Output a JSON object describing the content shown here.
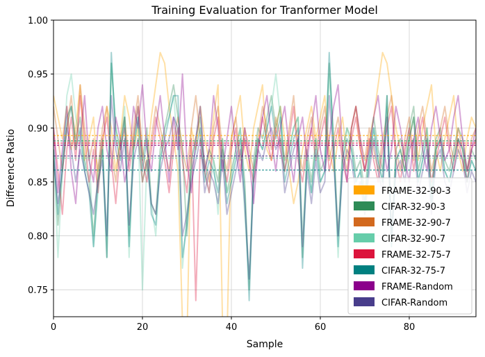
{
  "chart_data": {
    "type": "line",
    "title": "Training Evaluation for Tranformer Model",
    "xlabel": "Sample",
    "ylabel": "Difference Ratio",
    "xlim": [
      0,
      95
    ],
    "ylim": [
      0.725,
      1.0
    ],
    "xticks": [
      "0",
      "20",
      "40",
      "60",
      "80"
    ],
    "xtick_values": [
      0,
      20,
      40,
      60,
      80
    ],
    "yticks": [
      "0.75",
      "0.80",
      "0.85",
      "0.90",
      "0.95",
      "1.00"
    ],
    "ytick_values": [
      0.75,
      0.8,
      0.85,
      0.9,
      0.95,
      1.0
    ],
    "grid": true,
    "legend_position": "bottom-right",
    "series": [
      {
        "name": "FRAME-32-90-3",
        "color": "#FFA500",
        "mean": 0.893,
        "values": [
          0.93,
          0.91,
          0.89,
          0.92,
          0.88,
          0.9,
          0.94,
          0.87,
          0.89,
          0.91,
          0.85,
          0.88,
          0.92,
          0.9,
          0.86,
          0.89,
          0.93,
          0.91,
          0.88,
          0.9,
          0.85,
          0.87,
          0.91,
          0.94,
          0.97,
          0.96,
          0.92,
          0.89,
          0.86,
          0.72,
          0.7,
          0.9,
          0.88,
          0.92,
          0.89,
          0.87,
          0.91,
          0.94,
          0.72,
          0.7,
          0.89,
          0.91,
          0.93,
          0.88,
          0.86,
          0.9,
          0.92,
          0.94,
          0.88,
          0.87,
          0.9,
          0.92,
          0.89,
          0.86,
          0.83,
          0.85,
          0.88,
          0.9,
          0.92,
          0.89,
          0.91,
          0.93,
          0.88,
          0.86,
          0.89,
          0.91,
          0.87,
          0.9,
          0.92,
          0.88,
          0.86,
          0.89,
          0.91,
          0.94,
          0.97,
          0.96,
          0.93,
          0.9,
          0.88,
          0.86,
          0.89,
          0.91,
          0.87,
          0.9,
          0.92,
          0.94,
          0.88,
          0.86,
          0.89,
          0.91,
          0.93,
          0.88,
          0.86,
          0.89,
          0.91,
          0.9
        ]
      },
      {
        "name": "CIFAR-32-90-3",
        "color": "#2E8B57",
        "mean": 0.888,
        "values": [
          0.88,
          0.81,
          0.86,
          0.9,
          0.92,
          0.89,
          0.91,
          0.87,
          0.85,
          0.8,
          0.86,
          0.89,
          0.78,
          0.96,
          0.9,
          0.88,
          0.91,
          0.8,
          0.89,
          0.92,
          0.87,
          0.9,
          0.83,
          0.82,
          0.88,
          0.9,
          0.92,
          0.94,
          0.91,
          0.88,
          0.8,
          0.87,
          0.89,
          0.91,
          0.86,
          0.88,
          0.87,
          0.85,
          0.89,
          0.84,
          0.86,
          0.88,
          0.9,
          0.85,
          0.75,
          0.87,
          0.9,
          0.89,
          0.91,
          0.93,
          0.9,
          0.92,
          0.86,
          0.88,
          0.9,
          0.91,
          0.78,
          0.88,
          0.85,
          0.89,
          0.86,
          0.87,
          0.96,
          0.89,
          0.8,
          0.88,
          0.9,
          0.89,
          0.86,
          0.87,
          0.84,
          0.88,
          0.91,
          0.88,
          0.86,
          0.93,
          0.8,
          0.88,
          0.89,
          0.87,
          0.9,
          0.92,
          0.86,
          0.88,
          0.9,
          0.84,
          0.89,
          0.9,
          0.87,
          0.86,
          0.88,
          0.9,
          0.89,
          0.86,
          0.88,
          0.87
        ]
      },
      {
        "name": "FRAME-32-90-7",
        "color": "#D2691E",
        "mean": 0.884,
        "values": [
          0.92,
          0.89,
          0.86,
          0.9,
          0.93,
          0.88,
          0.94,
          0.9,
          0.87,
          0.89,
          0.86,
          0.9,
          0.92,
          0.88,
          0.85,
          0.89,
          0.91,
          0.87,
          0.9,
          0.93,
          0.88,
          0.86,
          0.89,
          0.92,
          0.9,
          0.88,
          0.86,
          0.89,
          0.91,
          0.88,
          0.86,
          0.9,
          0.93,
          0.89,
          0.87,
          0.85,
          0.9,
          0.92,
          0.88,
          0.86,
          0.89,
          0.91,
          0.87,
          0.9,
          0.88,
          0.86,
          0.89,
          0.92,
          0.9,
          0.88,
          0.91,
          0.89,
          0.87,
          0.9,
          0.93,
          0.88,
          0.86,
          0.89,
          0.91,
          0.88,
          0.9,
          0.92,
          0.87,
          0.89,
          0.91,
          0.88,
          0.86,
          0.9,
          0.92,
          0.89,
          0.87,
          0.9,
          0.88,
          0.86,
          0.89,
          0.91,
          0.93,
          0.88,
          0.86,
          0.89,
          0.91,
          0.87,
          0.9,
          0.92,
          0.89,
          0.86,
          0.88,
          0.9,
          0.92,
          0.89,
          0.87,
          0.9,
          0.88,
          0.86,
          0.89,
          0.9
        ]
      },
      {
        "name": "CIFAR-32-90-7",
        "color": "#66CDAA",
        "mean": 0.872,
        "values": [
          0.88,
          0.78,
          0.86,
          0.93,
          0.95,
          0.91,
          0.89,
          0.86,
          0.88,
          0.79,
          0.84,
          0.88,
          0.8,
          0.96,
          0.9,
          0.88,
          0.92,
          0.78,
          0.88,
          0.91,
          0.75,
          0.87,
          0.83,
          0.8,
          0.87,
          0.9,
          0.91,
          0.93,
          0.88,
          0.77,
          0.82,
          0.87,
          0.89,
          0.92,
          0.86,
          0.84,
          0.87,
          0.82,
          0.89,
          0.84,
          0.85,
          0.88,
          0.9,
          0.82,
          0.76,
          0.86,
          0.89,
          0.88,
          0.9,
          0.92,
          0.95,
          0.91,
          0.87,
          0.88,
          0.9,
          0.91,
          0.8,
          0.87,
          0.84,
          0.89,
          0.85,
          0.86,
          0.95,
          0.88,
          0.78,
          0.87,
          0.9,
          0.88,
          0.85,
          0.86,
          0.83,
          0.87,
          0.9,
          0.87,
          0.85,
          0.92,
          0.79,
          0.87,
          0.88,
          0.86,
          0.89,
          0.91,
          0.85,
          0.87,
          0.9,
          0.83,
          0.88,
          0.89,
          0.86,
          0.85,
          0.87,
          0.89,
          0.88,
          0.85,
          0.87,
          0.86
        ]
      },
      {
        "name": "FRAME-32-75-7",
        "color": "#DC143C",
        "mean": 0.886,
        "values": [
          0.9,
          0.86,
          0.82,
          0.88,
          0.91,
          0.87,
          0.93,
          0.89,
          0.85,
          0.88,
          0.84,
          0.89,
          0.91,
          0.87,
          0.83,
          0.88,
          0.9,
          0.86,
          0.89,
          0.92,
          0.87,
          0.85,
          0.88,
          0.91,
          0.89,
          0.87,
          0.84,
          0.88,
          0.9,
          0.87,
          0.84,
          0.89,
          0.74,
          0.88,
          0.86,
          0.84,
          0.89,
          0.91,
          0.87,
          0.85,
          0.88,
          0.9,
          0.86,
          0.89,
          0.87,
          0.85,
          0.88,
          0.91,
          0.89,
          0.87,
          0.9,
          0.88,
          0.86,
          0.89,
          0.92,
          0.87,
          0.85,
          0.88,
          0.9,
          0.87,
          0.89,
          0.91,
          0.86,
          0.88,
          0.9,
          0.87,
          0.85,
          0.89,
          0.91,
          0.88,
          0.86,
          0.89,
          0.87,
          0.85,
          0.88,
          0.9,
          0.92,
          0.87,
          0.85,
          0.88,
          0.9,
          0.86,
          0.89,
          0.91,
          0.88,
          0.85,
          0.87,
          0.89,
          0.91,
          0.88,
          0.86,
          0.89,
          0.87,
          0.85,
          0.88,
          0.89
        ]
      },
      {
        "name": "CIFAR-32-75-7",
        "color": "#008080",
        "mean": 0.861,
        "values": [
          0.88,
          0.82,
          0.87,
          0.91,
          0.92,
          0.88,
          0.9,
          0.86,
          0.84,
          0.79,
          0.85,
          0.88,
          0.78,
          0.97,
          0.89,
          0.87,
          0.91,
          0.79,
          0.88,
          0.91,
          0.86,
          0.89,
          0.82,
          0.81,
          0.87,
          0.89,
          0.91,
          0.93,
          0.93,
          0.78,
          0.81,
          0.86,
          0.88,
          0.9,
          0.85,
          0.87,
          0.86,
          0.84,
          0.88,
          0.83,
          0.85,
          0.87,
          0.89,
          0.84,
          0.74,
          0.86,
          0.89,
          0.88,
          0.9,
          0.92,
          0.89,
          0.91,
          0.85,
          0.87,
          0.89,
          0.9,
          0.77,
          0.87,
          0.84,
          0.88,
          0.85,
          0.86,
          0.97,
          0.88,
          0.79,
          0.87,
          0.89,
          0.88,
          0.85,
          0.86,
          0.83,
          0.87,
          0.9,
          0.87,
          0.85,
          0.93,
          0.79,
          0.87,
          0.88,
          0.86,
          0.89,
          0.91,
          0.85,
          0.87,
          0.89,
          0.83,
          0.88,
          0.89,
          0.86,
          0.85,
          0.87,
          0.89,
          0.88,
          0.85,
          0.87,
          0.86
        ]
      },
      {
        "name": "FRAME-Random",
        "color": "#8B008B",
        "mean": 0.884,
        "values": [
          0.9,
          0.84,
          0.88,
          0.92,
          0.86,
          0.83,
          0.89,
          0.93,
          0.87,
          0.85,
          0.9,
          0.92,
          0.88,
          0.86,
          0.91,
          0.89,
          0.85,
          0.87,
          0.92,
          0.9,
          0.94,
          0.88,
          0.86,
          0.9,
          0.93,
          0.89,
          0.85,
          0.91,
          0.88,
          0.95,
          0.87,
          0.84,
          0.89,
          0.92,
          0.86,
          0.88,
          0.93,
          0.9,
          0.86,
          0.89,
          0.92,
          0.88,
          0.85,
          0.9,
          0.87,
          0.83,
          0.88,
          0.91,
          0.93,
          0.89,
          0.86,
          0.9,
          0.92,
          0.88,
          0.85,
          0.89,
          0.91,
          0.87,
          0.9,
          0.93,
          0.88,
          0.86,
          0.89,
          0.92,
          0.94,
          0.88,
          0.85,
          0.9,
          0.92,
          0.89,
          0.86,
          0.88,
          0.91,
          0.93,
          0.89,
          0.86,
          0.88,
          0.92,
          0.9,
          0.87,
          0.85,
          0.89,
          0.91,
          0.88,
          0.86,
          0.9,
          0.92,
          0.89,
          0.87,
          0.88,
          0.91,
          0.93,
          0.89,
          0.86,
          0.88,
          0.9
        ]
      },
      {
        "name": "CIFAR-Random",
        "color": "#483D8B",
        "mean": 0.874,
        "values": [
          0.87,
          0.83,
          0.86,
          0.9,
          0.88,
          0.85,
          0.88,
          0.86,
          0.84,
          0.82,
          0.85,
          0.87,
          0.8,
          0.93,
          0.88,
          0.86,
          0.89,
          0.81,
          0.87,
          0.89,
          0.85,
          0.87,
          0.83,
          0.82,
          0.86,
          0.88,
          0.89,
          0.91,
          0.9,
          0.8,
          0.82,
          0.85,
          0.87,
          0.89,
          0.84,
          0.86,
          0.85,
          0.83,
          0.87,
          0.82,
          0.84,
          0.86,
          0.88,
          0.83,
          0.76,
          0.85,
          0.88,
          0.87,
          0.89,
          0.9,
          0.88,
          0.89,
          0.84,
          0.86,
          0.88,
          0.89,
          0.79,
          0.86,
          0.83,
          0.87,
          0.84,
          0.85,
          0.93,
          0.87,
          0.8,
          0.86,
          0.88,
          0.87,
          0.84,
          0.85,
          0.82,
          0.86,
          0.89,
          0.86,
          0.84,
          0.91,
          0.8,
          0.86,
          0.87,
          0.85,
          0.88,
          0.89,
          0.84,
          0.86,
          0.88,
          0.82,
          0.87,
          0.88,
          0.85,
          0.84,
          0.86,
          0.88,
          0.87,
          0.84,
          0.86,
          0.85
        ]
      }
    ]
  }
}
